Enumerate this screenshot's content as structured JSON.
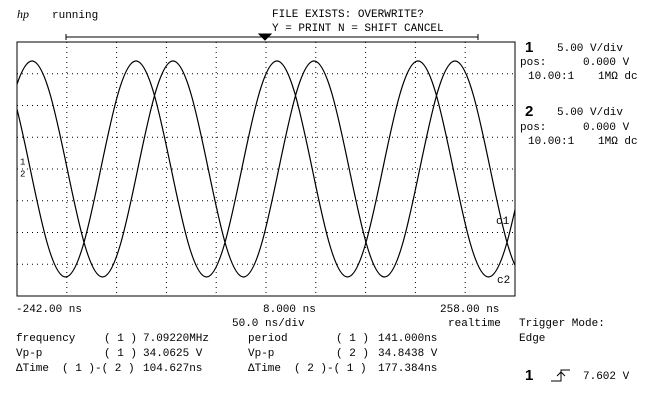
{
  "header": {
    "logo": "hp",
    "status": "running",
    "prompt": "FILE EXISTS: OVERWRITE?",
    "prompt_keys": "Y = PRINT N = SHIFT CANCEL"
  },
  "channels": [
    {
      "number": "1",
      "scale": "5.00  V/div",
      "pos_label": "pos:",
      "pos": "0.000  V",
      "probe": "10.00:1",
      "coupling": "1MΩ dc",
      "trace_label": "c1"
    },
    {
      "number": "2",
      "scale": "5.00  V/div",
      "pos_label": "pos:",
      "pos": "0.000  V",
      "probe": "10.00:1",
      "coupling": "1MΩ dc",
      "trace_label": "c2"
    }
  ],
  "timebase": {
    "left": "-242.00 ns",
    "center": "8.000 ns",
    "right": "258.00 ns",
    "scale": "50.0 ns/div",
    "mode": "realtime"
  },
  "measurements": [
    {
      "name": "frequency",
      "channel": "( 1 )",
      "value": "7.09220MHz"
    },
    {
      "name": "period",
      "channel": "( 1 )",
      "value": "141.000ns"
    },
    {
      "name": "Vp-p",
      "channel": "( 1 )",
      "value": "34.0625 V"
    },
    {
      "name": "Vp-p",
      "channel": "( 2 )",
      "value": "34.8438 V"
    },
    {
      "name": "ΔTime",
      "channel": "( 1 )-( 2 )",
      "value": "104.627ns"
    },
    {
      "name": "ΔTime",
      "channel": "( 2 )-( 1 )",
      "value": "177.384ns"
    }
  ],
  "trigger": {
    "mode_label": "Trigger Mode:",
    "mode": "Edge",
    "channel": "1",
    "level": "7.602  V"
  }
}
